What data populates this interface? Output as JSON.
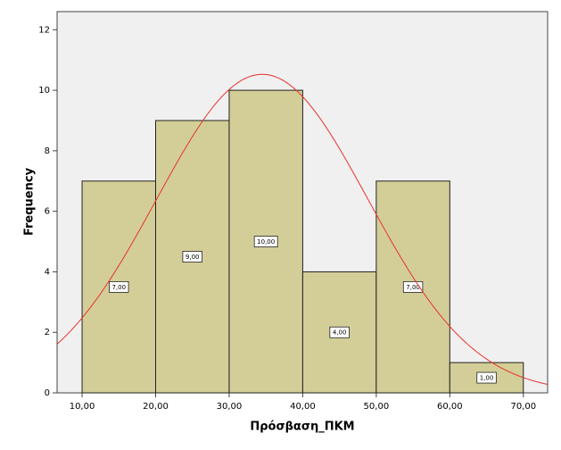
{
  "chart_data": {
    "type": "histogram",
    "x_label": "Πρόσβαση_ΠΚΜ",
    "y_label": "Frequency",
    "bins": [
      10,
      20,
      30,
      40,
      50,
      60,
      70
    ],
    "values": [
      7,
      9,
      10,
      4,
      7,
      1
    ],
    "value_labels": [
      "7,00",
      "9,00",
      "10,00",
      "4,00",
      "7,00",
      "1,00"
    ],
    "color": "#d3ce97",
    "xlim": [
      6.6,
      73.3
    ],
    "ylim": [
      0,
      12.6
    ],
    "xticks": [
      {
        "value": 10,
        "label": "10,00"
      },
      {
        "value": 20,
        "label": "20,00"
      },
      {
        "value": 30,
        "label": "30,00"
      },
      {
        "value": 40,
        "label": "40,00"
      },
      {
        "value": 50,
        "label": "50,00"
      },
      {
        "value": 60,
        "label": "60,00"
      },
      {
        "value": 70,
        "label": "70,00"
      }
    ],
    "yticks": [
      0,
      2,
      4,
      6,
      8,
      10,
      12
    ],
    "normal_curve": {
      "mean": 34.5,
      "std": 14.4,
      "color": "#e8322e"
    }
  }
}
